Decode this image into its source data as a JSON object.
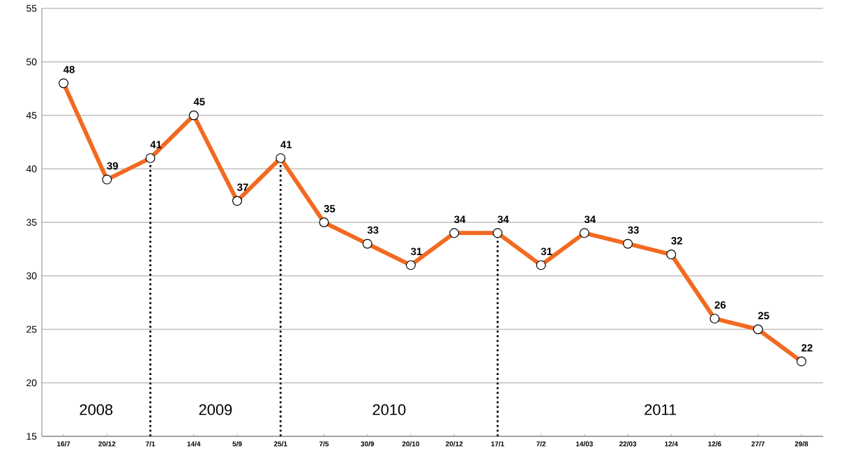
{
  "chart_data": {
    "type": "line",
    "categories": [
      "16/7",
      "20/12",
      "7/1",
      "14/4",
      "5/9",
      "25/1",
      "7/5",
      "30/9",
      "20/10",
      "20/12",
      "17/1",
      "7/2",
      "14/03",
      "22/03",
      "12/4",
      "12/6",
      "27/7",
      "29/8"
    ],
    "values": [
      48,
      39,
      41,
      45,
      37,
      41,
      35,
      33,
      31,
      34,
      34,
      31,
      34,
      33,
      32,
      26,
      25,
      22
    ],
    "color": "#f26a21",
    "ylim": [
      15,
      55
    ],
    "yticks": [
      15,
      20,
      25,
      30,
      35,
      40,
      45,
      50,
      55
    ],
    "grid": "y",
    "marker": "circle",
    "line_style": "solid",
    "data_labels": true,
    "ref_lines": [
      {
        "axis": "x",
        "value": "7/1",
        "color": "#000000",
        "line_style": "dotted"
      },
      {
        "axis": "x",
        "value": "25/1",
        "color": "#000000",
        "line_style": "dotted"
      },
      {
        "axis": "x",
        "value": "17/1",
        "color": "#000000",
        "line_style": "dotted"
      }
    ],
    "annotations": [
      "2008",
      "2009",
      "2010",
      "2011"
    ]
  }
}
